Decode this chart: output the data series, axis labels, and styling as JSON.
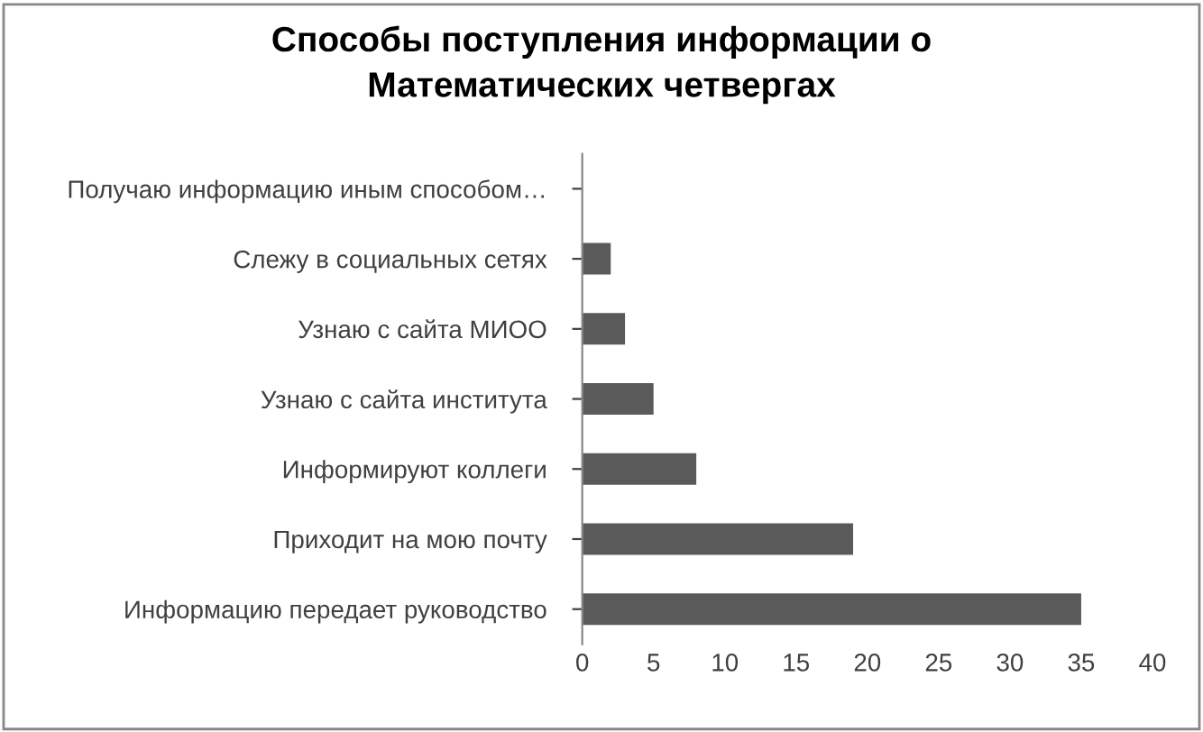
{
  "chart_data": {
    "type": "bar",
    "orientation": "horizontal",
    "title": "Способы поступления информации о\nМатематических четвергах",
    "categories": [
      "Получаю информацию иным способом…",
      "Слежу в социальных сетях",
      "Узнаю с сайта МИОО",
      "Узнаю с сайта института",
      "Информируют коллеги",
      "Приходит на мою почту",
      "Информацию передает руководство"
    ],
    "values": [
      0,
      2,
      3,
      5,
      8,
      19,
      35
    ],
    "color": "#5a5a5a",
    "xlim": [
      0,
      40
    ],
    "xticks": [
      0,
      5,
      10,
      15,
      20,
      25,
      30,
      35,
      40
    ],
    "grid": false,
    "legend": false
  }
}
